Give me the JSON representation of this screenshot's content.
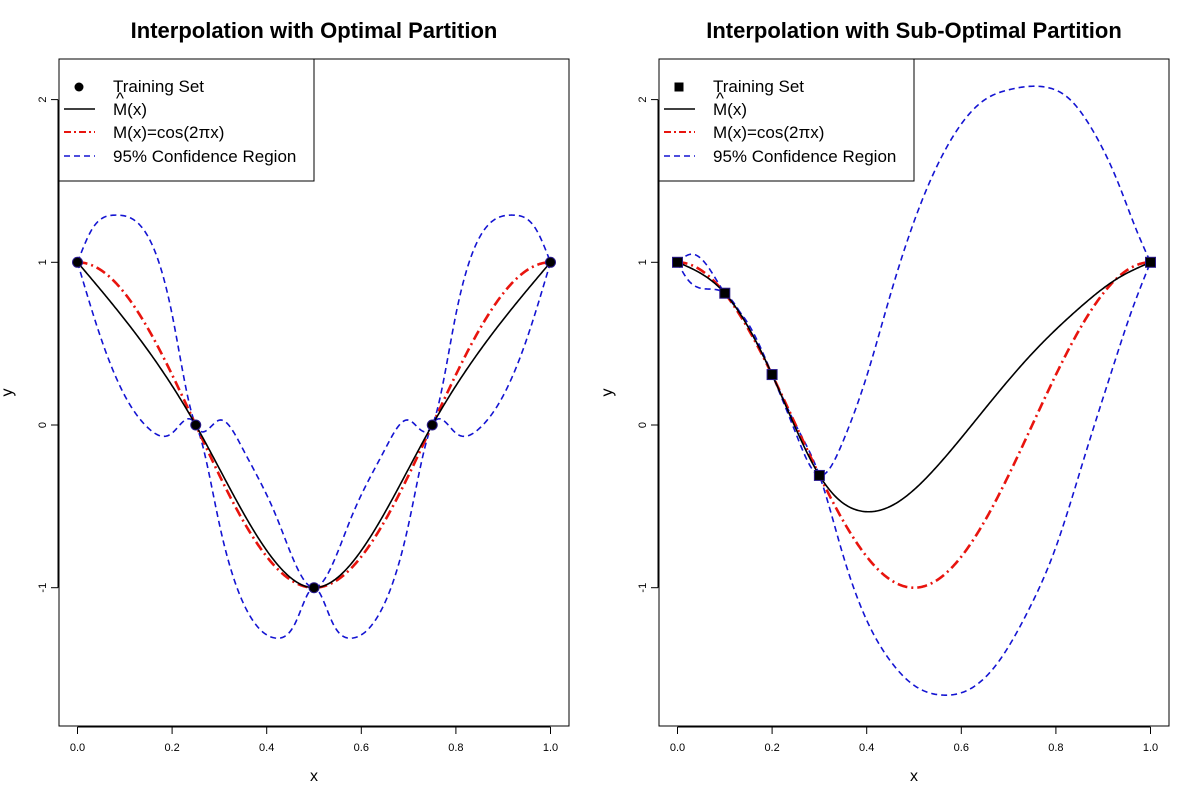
{
  "colors": {
    "fit": "#000000",
    "true_curve": "#e8140e",
    "confidence": "#1414d2",
    "points": "#000000"
  },
  "chart_data": [
    {
      "type": "line",
      "title": "Interpolation with Optimal Partition",
      "xlabel": "x",
      "ylabel": "y",
      "xlim": [
        0.0,
        1.0
      ],
      "ylim": [
        -1.85,
        2.25
      ],
      "xticks": [
        "0.0",
        "0.2",
        "0.4",
        "0.6",
        "0.8",
        "1.0"
      ],
      "yticks": [
        "-1",
        "0",
        "1",
        "2"
      ],
      "grid": false,
      "legend_placement": "top-left",
      "point_marker": "circle",
      "legend": [
        "Training Set",
        "M(x)",
        "M(x)=cos(2πx)",
        "95% Confidence Region"
      ],
      "training_set": {
        "x": [
          0.0,
          0.25,
          0.5,
          0.75,
          1.0
        ],
        "y": [
          1.0,
          0.0,
          -1.0,
          0.0,
          1.0
        ]
      },
      "confidence_upper_peaks": {
        "x": [
          0.0,
          0.08,
          0.25,
          0.3,
          0.5,
          0.7,
          0.75,
          0.92,
          1.0
        ],
        "y": [
          1.0,
          1.29,
          0.0,
          0.03,
          -1.0,
          0.03,
          0.0,
          1.29,
          1.0
        ]
      },
      "confidence_lower_troughs": {
        "x": [
          0.0,
          0.2,
          0.25,
          0.42,
          0.5,
          0.58,
          0.75,
          0.8,
          1.0
        ],
        "y": [
          1.0,
          -0.05,
          0.0,
          -1.31,
          -1.0,
          -1.31,
          0.0,
          -0.05,
          1.0
        ]
      }
    },
    {
      "type": "line",
      "title": "Interpolation with Sub-Optimal Partition",
      "xlabel": "x",
      "ylabel": "y",
      "xlim": [
        0.0,
        1.0
      ],
      "ylim": [
        -1.85,
        2.25
      ],
      "xticks": [
        "0.0",
        "0.2",
        "0.4",
        "0.6",
        "0.8",
        "1.0"
      ],
      "yticks": [
        "-1",
        "0",
        "1",
        "2"
      ],
      "grid": false,
      "legend_placement": "top-left",
      "point_marker": "square",
      "legend": [
        "Training Set",
        "M(x)",
        "M(x)=cos(2πx)",
        "95% Confidence Region"
      ],
      "training_set": {
        "x": [
          0.0,
          0.1,
          0.2,
          0.3,
          1.0
        ],
        "y": [
          1.0,
          0.81,
          0.31,
          -0.31,
          1.0
        ]
      },
      "fit_minimum": {
        "x": 0.39,
        "y": -0.53
      },
      "confidence_upper_max": {
        "x": 0.77,
        "y": 2.08
      },
      "confidence_lower_min": {
        "x": 0.56,
        "y": -1.66
      }
    }
  ]
}
